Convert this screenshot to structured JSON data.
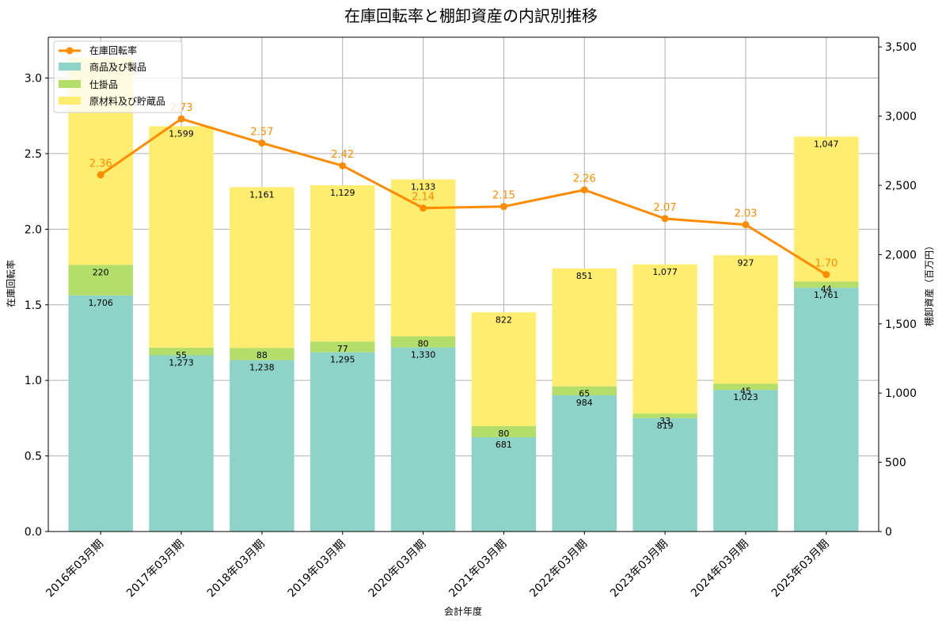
{
  "chart_data": {
    "type": "bar",
    "title": "在庫回転率と棚卸資産の内訳別推移",
    "xlabel": "会計年度",
    "ylabel_left": "在庫回転率",
    "ylabel_right": "棚卸資産（百万円）",
    "ylim_left": [
      0,
      3.27
    ],
    "ylim_right": [
      0,
      3570
    ],
    "yticks_left": [
      "0.0",
      "0.5",
      "1.0",
      "1.5",
      "2.0",
      "2.5",
      "3.0"
    ],
    "yticks_right": [
      "0",
      "500",
      "1,000",
      "1,500",
      "2,000",
      "2,500",
      "3,000",
      "3,500"
    ],
    "categories": [
      "2016年03月期",
      "2017年03月期",
      "2018年03月期",
      "2019年03月期",
      "2020年03月期",
      "2021年03月期",
      "2022年03月期",
      "2023年03月期",
      "2024年03月期",
      "2025年03月期"
    ],
    "series": [
      {
        "name": "商品及び製品",
        "color": "#8dd3c7",
        "values": [
          1706,
          1273,
          1238,
          1295,
          1330,
          681,
          984,
          819,
          1023,
          1761
        ],
        "labels": [
          "1,706",
          "1,273",
          "1,238",
          "1,295",
          "1,330",
          "681",
          "984",
          "819",
          "1,023",
          "1,761"
        ]
      },
      {
        "name": "仕掛品",
        "color": "#b3de69",
        "values": [
          220,
          55,
          88,
          77,
          80,
          80,
          65,
          33,
          45,
          44
        ],
        "labels": [
          "220",
          "55",
          "88",
          "77",
          "80",
          "80",
          "65",
          "33",
          "45",
          "44"
        ]
      },
      {
        "name": "原材料及び貯蔵品",
        "color": "#ffed6f",
        "values": [
          1496,
          1599,
          1161,
          1129,
          1133,
          822,
          851,
          1077,
          927,
          1047
        ],
        "labels": [
          "",
          "1,599",
          "1,161",
          "1,129",
          "1,133",
          "822",
          "851",
          "1,077",
          "927",
          "1,047"
        ]
      }
    ],
    "line": {
      "name": "在庫回転率",
      "color": "#ff8c00",
      "values": [
        2.36,
        2.73,
        2.57,
        2.42,
        2.14,
        2.15,
        2.26,
        2.07,
        2.03,
        1.7
      ],
      "labels": [
        "2.36",
        "2.73",
        "2.57",
        "2.42",
        "2.14",
        "2.15",
        "2.26",
        "2.07",
        "2.03",
        "1.70"
      ]
    },
    "legend": "top-left",
    "grid": true
  }
}
